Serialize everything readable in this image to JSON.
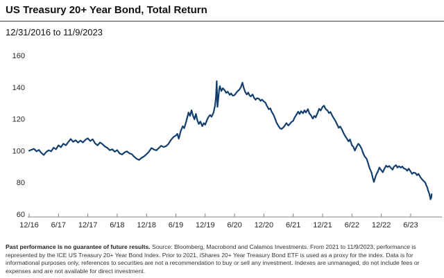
{
  "header": {
    "title": "US Treasury 20+ Year Bond, Total Return",
    "date_range": "12/31/2016 to 11/9/2023"
  },
  "footnote": {
    "bold": "Past performance is no guarantee of future results.",
    "rest": " Source: Bloomberg, Macrobond and Calamos Investments. From 2021 to 11/9/2023, performance is represented by the ICE US Treasury 20+ Year Bond Index. Prior to 2021, iShares 20+ Year Treasury Bond ETF is used as a proxy for the index. Data is for informational purposes only, references to securities are not a recommendation to buy or sell any investment.  Indexes are unmanaged, do not include fees or expenses and are not available for direct investment."
  },
  "colors": {
    "line": "#123f6d",
    "axis": "#808080",
    "tick_label": "#262626"
  },
  "chart_data": {
    "type": "line",
    "title": "US Treasury 20+ Year Bond, Total Return",
    "subtitle": "12/31/2016 to 11/9/2023",
    "grid": false,
    "legend": "none",
    "x_unit": "months since 12/31/2016",
    "xlim": [
      0,
      83
    ],
    "ylim": [
      60,
      160
    ],
    "y_ticks": [
      60,
      80,
      100,
      120,
      140,
      160
    ],
    "x_ticks": [
      {
        "t": 0,
        "label": "12/16"
      },
      {
        "t": 6,
        "label": "6/17"
      },
      {
        "t": 12,
        "label": "12/17"
      },
      {
        "t": 18,
        "label": "6/18"
      },
      {
        "t": 24,
        "label": "12/18"
      },
      {
        "t": 30,
        "label": "6/19"
      },
      {
        "t": 36,
        "label": "12/19"
      },
      {
        "t": 42,
        "label": "6/20"
      },
      {
        "t": 48,
        "label": "12/20"
      },
      {
        "t": 54,
        "label": "6/21"
      },
      {
        "t": 60,
        "label": "12/21"
      },
      {
        "t": 66,
        "label": "6/22"
      },
      {
        "t": 72,
        "label": "12/22"
      },
      {
        "t": 78,
        "label": "6/23"
      }
    ],
    "series": [
      {
        "name": "US Treasury 20+ Year Bond, Total Return",
        "points": [
          [
            0,
            100
          ],
          [
            0.5,
            100.6
          ],
          [
            1,
            101.2
          ],
          [
            1.5,
            99.6
          ],
          [
            2,
            100.5
          ],
          [
            2.5,
            98.6
          ],
          [
            3,
            97.3
          ],
          [
            3.5,
            99.2
          ],
          [
            4,
            100.3
          ],
          [
            4.5,
            99.6
          ],
          [
            5,
            101.9
          ],
          [
            5.5,
            100.9
          ],
          [
            6,
            103.4
          ],
          [
            6.5,
            102.2
          ],
          [
            7,
            104.4
          ],
          [
            7.5,
            103.4
          ],
          [
            8,
            105.4
          ],
          [
            8.5,
            107.4
          ],
          [
            9,
            105.6
          ],
          [
            9.5,
            106.6
          ],
          [
            10,
            105.1
          ],
          [
            10.5,
            106.4
          ],
          [
            11,
            105.2
          ],
          [
            11.5,
            106.9
          ],
          [
            12,
            107.8
          ],
          [
            12.5,
            106.1
          ],
          [
            13,
            107.2
          ],
          [
            13.5,
            104.6
          ],
          [
            14,
            103.4
          ],
          [
            14.5,
            105.2
          ],
          [
            15,
            104.1
          ],
          [
            15.5,
            102.6
          ],
          [
            16,
            101.8
          ],
          [
            16.5,
            100.3
          ],
          [
            17,
            100.9
          ],
          [
            17.5,
            99.4
          ],
          [
            18,
            100.4
          ],
          [
            18.5,
            98.3
          ],
          [
            19,
            97.6
          ],
          [
            19.5,
            98.9
          ],
          [
            20,
            99.6
          ],
          [
            20.5,
            98.4
          ],
          [
            21,
            97.8
          ],
          [
            21.5,
            96.1
          ],
          [
            22,
            94.9
          ],
          [
            22.5,
            94.2
          ],
          [
            23,
            95.6
          ],
          [
            23.5,
            96.4
          ],
          [
            24,
            97.8
          ],
          [
            24.5,
            99.4
          ],
          [
            25,
            101.7
          ],
          [
            25.5,
            100.8
          ],
          [
            26,
            100.2
          ],
          [
            26.5,
            101.6
          ],
          [
            27,
            103.1
          ],
          [
            27.5,
            102.3
          ],
          [
            28,
            102.9
          ],
          [
            28.5,
            104.3
          ],
          [
            29,
            106.8
          ],
          [
            29.5,
            108.6
          ],
          [
            30,
            109.6
          ],
          [
            30.3,
            110.6
          ],
          [
            30.6,
            107.6
          ],
          [
            31,
            112.4
          ],
          [
            31.4,
            115.4
          ],
          [
            31.7,
            114.2
          ],
          [
            32,
            117.1
          ],
          [
            32.3,
            120.6
          ],
          [
            32.6,
            124.1
          ],
          [
            32.9,
            121.9
          ],
          [
            33.2,
            125.5
          ],
          [
            33.5,
            122.1
          ],
          [
            33.8,
            119.8
          ],
          [
            34.1,
            123.2
          ],
          [
            34.4,
            119.1
          ],
          [
            34.7,
            116.8
          ],
          [
            35,
            118.4
          ],
          [
            35.4,
            115.5
          ],
          [
            35.7,
            117.4
          ],
          [
            36,
            116.4
          ],
          [
            36.4,
            119.6
          ],
          [
            36.7,
            121.4
          ],
          [
            37,
            122.5
          ],
          [
            37.3,
            121.4
          ],
          [
            37.7,
            124.1
          ],
          [
            38,
            128.2
          ],
          [
            38.2,
            134
          ],
          [
            38.35,
            143.8
          ],
          [
            38.5,
            127.6
          ],
          [
            38.7,
            133.2
          ],
          [
            38.85,
            138.5
          ],
          [
            39,
            140.7
          ],
          [
            39.3,
            137.6
          ],
          [
            39.6,
            139.4
          ],
          [
            40,
            138
          ],
          [
            40.3,
            136.4
          ],
          [
            40.6,
            137.2
          ],
          [
            41,
            135.2
          ],
          [
            41.3,
            136.1
          ],
          [
            41.6,
            134.7
          ],
          [
            42,
            135
          ],
          [
            42.3,
            136.3
          ],
          [
            42.6,
            137.4
          ],
          [
            43,
            138.5
          ],
          [
            43.3,
            140.1
          ],
          [
            43.6,
            142.9
          ],
          [
            43.9,
            139.4
          ],
          [
            44.2,
            136.9
          ],
          [
            44.5,
            135.4
          ],
          [
            44.8,
            136.7
          ],
          [
            45,
            135.1
          ],
          [
            45.3,
            134.2
          ],
          [
            45.7,
            135.4
          ],
          [
            46,
            133.3
          ],
          [
            46.3,
            132.1
          ],
          [
            46.6,
            133.1
          ],
          [
            47,
            132.7
          ],
          [
            47.3,
            131.4
          ],
          [
            47.6,
            132.2
          ],
          [
            48,
            131
          ],
          [
            48.3,
            130.3
          ],
          [
            48.6,
            128.4
          ],
          [
            49,
            126.1
          ],
          [
            49.3,
            126.7
          ],
          [
            49.6,
            124.5
          ],
          [
            50,
            122.4
          ],
          [
            50.3,
            120.1
          ],
          [
            50.6,
            117.6
          ],
          [
            51,
            115.4
          ],
          [
            51.3,
            114.1
          ],
          [
            51.6,
            113.7
          ],
          [
            52,
            114.7
          ],
          [
            52.3,
            116
          ],
          [
            52.6,
            117.4
          ],
          [
            53,
            115.9
          ],
          [
            53.3,
            116.9
          ],
          [
            53.6,
            118
          ],
          [
            54,
            118.9
          ],
          [
            54.3,
            121
          ],
          [
            54.6,
            122.4
          ],
          [
            55,
            124.6
          ],
          [
            55.3,
            123.1
          ],
          [
            55.6,
            124.9
          ],
          [
            56,
            123.6
          ],
          [
            56.3,
            125.4
          ],
          [
            56.6,
            124.1
          ],
          [
            57,
            126.2
          ],
          [
            57.3,
            123.4
          ],
          [
            57.6,
            122.4
          ],
          [
            58,
            120.2
          ],
          [
            58.3,
            121.9
          ],
          [
            58.6,
            121
          ],
          [
            59,
            124
          ],
          [
            59.3,
            126.4
          ],
          [
            59.6,
            125.3
          ],
          [
            60,
            127.6
          ],
          [
            60.3,
            128.4
          ],
          [
            60.6,
            126.4
          ],
          [
            61,
            125.3
          ],
          [
            61.3,
            123.7
          ],
          [
            61.6,
            124.4
          ],
          [
            62,
            121.9
          ],
          [
            62.3,
            120.4
          ],
          [
            62.6,
            118.9
          ],
          [
            63,
            116.4
          ],
          [
            63.3,
            114.4
          ],
          [
            63.6,
            115.3
          ],
          [
            64,
            113.1
          ],
          [
            64.3,
            111
          ],
          [
            64.6,
            109.4
          ],
          [
            65,
            107.4
          ],
          [
            65.3,
            105.9
          ],
          [
            65.6,
            107.1
          ],
          [
            66,
            103.4
          ],
          [
            66.3,
            102.4
          ],
          [
            66.6,
            100.1
          ],
          [
            67,
            102.8
          ],
          [
            67.3,
            104.4
          ],
          [
            67.6,
            103.4
          ],
          [
            68,
            101.1
          ],
          [
            68.3,
            98.4
          ],
          [
            68.6,
            96.4
          ],
          [
            69,
            94.9
          ],
          [
            69.3,
            92.1
          ],
          [
            69.6,
            89.1
          ],
          [
            70,
            86.2
          ],
          [
            70.3,
            82.4
          ],
          [
            70.5,
            80.3
          ],
          [
            70.8,
            83.4
          ],
          [
            71,
            85.1
          ],
          [
            71.3,
            86.9
          ],
          [
            71.6,
            89.4
          ],
          [
            72,
            87.7
          ],
          [
            72.3,
            86.4
          ],
          [
            72.6,
            88.4
          ],
          [
            73,
            90.6
          ],
          [
            73.3,
            89.7
          ],
          [
            73.6,
            90.4
          ],
          [
            74,
            89.1
          ],
          [
            74.3,
            88.1
          ],
          [
            74.6,
            89.9
          ],
          [
            75,
            90.9
          ],
          [
            75.3,
            89.4
          ],
          [
            75.6,
            90.2
          ],
          [
            76,
            89.4
          ],
          [
            76.3,
            90.1
          ],
          [
            76.6,
            88.9
          ],
          [
            77,
            88.4
          ],
          [
            77.3,
            87.4
          ],
          [
            77.6,
            88.7
          ],
          [
            78,
            86.9
          ],
          [
            78.3,
            85.4
          ],
          [
            78.6,
            86.2
          ],
          [
            79,
            85.9
          ],
          [
            79.3,
            84.6
          ],
          [
            79.6,
            85.4
          ],
          [
            80,
            83.3
          ],
          [
            80.3,
            82.1
          ],
          [
            80.6,
            81.1
          ],
          [
            81,
            79.9
          ],
          [
            81.2,
            78.1
          ],
          [
            81.4,
            76.9
          ],
          [
            81.6,
            74.6
          ],
          [
            81.8,
            73.1
          ],
          [
            82,
            70.6
          ],
          [
            82.05,
            69.4
          ],
          [
            82.15,
            71.1
          ],
          [
            82.2,
            70.1
          ],
          [
            82.3,
            72.6
          ]
        ]
      }
    ]
  }
}
